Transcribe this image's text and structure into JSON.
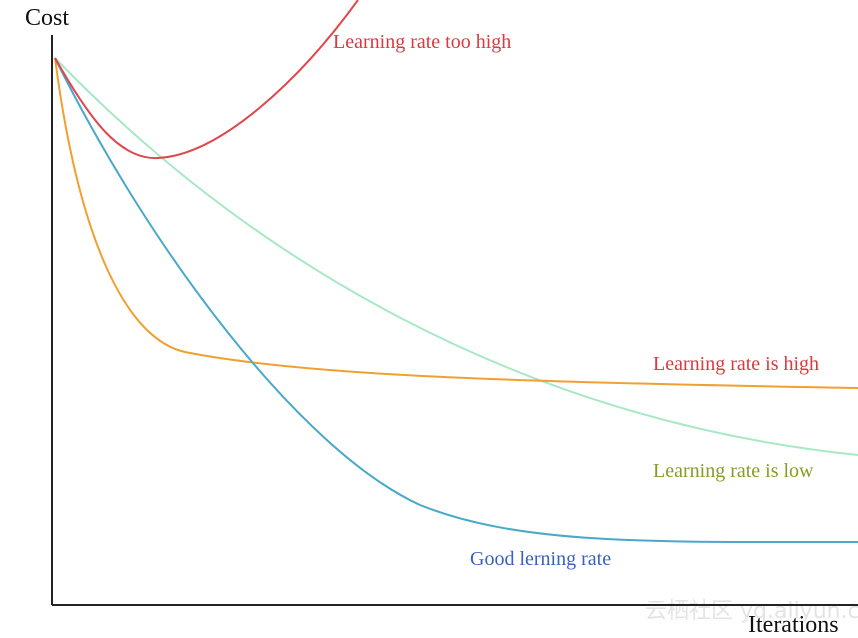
{
  "axes": {
    "y_label": "Cost",
    "x_label": "Iterations"
  },
  "curves": [
    {
      "label": "Learning rate too high"
    },
    {
      "label": "Learning rate is high"
    },
    {
      "label": "Learning rate is low"
    },
    {
      "label": "Good lerning rate"
    }
  ],
  "watermark": "云栖社区 yq.aliyun.com"
}
